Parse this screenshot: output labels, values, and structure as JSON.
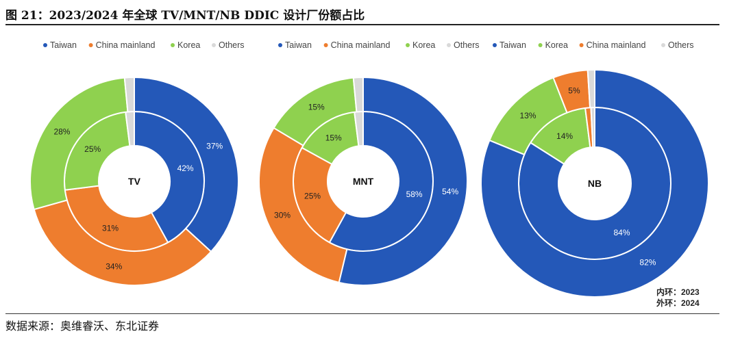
{
  "figure": {
    "title": "图 21：2023/2024 年全球 TV/MNT/NB DDIC 设计厂份额占比",
    "source": "数据来源：奥维睿沃、东北证券",
    "inner_ring_note": "内环：2023",
    "outer_ring_note": "外环：2024"
  },
  "colors": {
    "Taiwan": "#2458b8",
    "China mainland": "#ee7d2e",
    "Korea": "#8fd14f",
    "Others": "#d9d9d9"
  },
  "chart_data": [
    {
      "type": "donut",
      "center_label": "TV",
      "legend": [
        "Taiwan",
        "China mainland",
        "Korea",
        "Others"
      ],
      "series": [
        {
          "name": "2023",
          "ring": "inner",
          "values": {
            "Taiwan": 42,
            "China mainland": 31,
            "Korea": 25,
            "Others": 2
          }
        },
        {
          "name": "2024",
          "ring": "outer",
          "values": {
            "Taiwan": 37,
            "China mainland": 34,
            "Korea": 28,
            "Others": 1.5
          }
        }
      ]
    },
    {
      "type": "donut",
      "center_label": "MNT",
      "legend": [
        "Taiwan",
        "China mainland",
        "Korea",
        "Others"
      ],
      "series": [
        {
          "name": "2023",
          "ring": "inner",
          "values": {
            "Taiwan": 58,
            "China mainland": 25,
            "Korea": 15,
            "Others": 2
          }
        },
        {
          "name": "2024",
          "ring": "outer",
          "values": {
            "Taiwan": 54,
            "China mainland": 30,
            "Korea": 15,
            "Others": 1.5
          }
        }
      ]
    },
    {
      "type": "donut",
      "center_label": "NB",
      "legend": [
        "Taiwan",
        "Korea",
        "China mainland",
        "Others"
      ],
      "series": [
        {
          "name": "2023",
          "ring": "inner",
          "values": {
            "Taiwan": 84,
            "Korea": 14,
            "China mainland": 1.2,
            "Others": 0.8
          }
        },
        {
          "name": "2024",
          "ring": "outer",
          "values": {
            "Taiwan": 82,
            "Korea": 13,
            "China mainland": 5,
            "Others": 1
          }
        }
      ]
    }
  ]
}
